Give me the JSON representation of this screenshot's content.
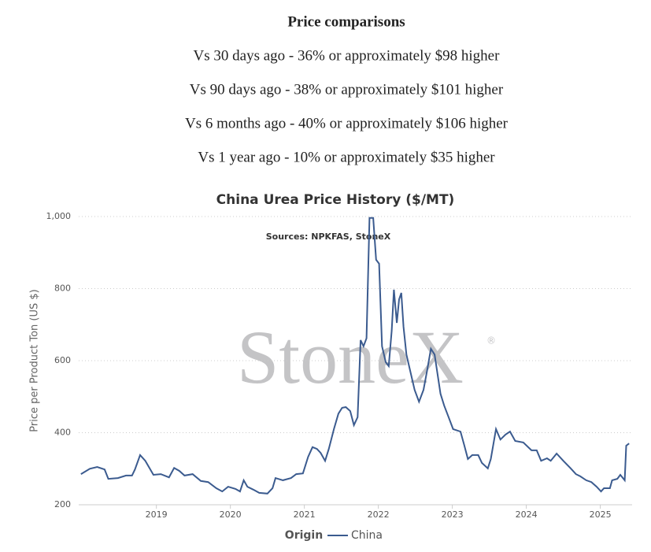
{
  "price_comparisons": {
    "title": "Price comparisons",
    "lines": [
      "Vs 30 days ago - 36% or approximately $98 higher",
      "Vs 90 days ago - 38% or approximately $101 higher",
      "Vs 6 months ago - 40% or approximately $106 higher",
      "Vs 1 year ago - 10% or approximately $35 higher"
    ]
  },
  "chart_data": {
    "type": "line",
    "title": "China Urea Price History ($/MT)",
    "annotation": "Sources: NPKFAS, StoneX",
    "watermark": "StoneX",
    "y_label": "Price per Product Ton (US $)",
    "legend_title": "Origin",
    "grid": true,
    "xlim": [
      2017.95,
      2025.43
    ],
    "xticks": [
      2019,
      2020,
      2021,
      2022,
      2023,
      2024,
      2025
    ],
    "ylim": [
      200,
      1000
    ],
    "yticks": [
      200,
      400,
      600,
      800,
      {
        "value": 1000,
        "label": "1,000"
      }
    ],
    "x": [
      2017.98,
      2018.1,
      2018.2,
      2018.3,
      2018.35,
      2018.48,
      2018.59,
      2018.67,
      2018.71,
      2018.78,
      2018.85,
      2018.96,
      2019.06,
      2019.17,
      2019.24,
      2019.31,
      2019.38,
      2019.49,
      2019.6,
      2019.7,
      2019.81,
      2019.89,
      2019.97,
      2020.07,
      2020.13,
      2020.18,
      2020.23,
      2020.31,
      2020.39,
      2020.5,
      2020.57,
      2020.61,
      2020.71,
      2020.82,
      2020.89,
      2020.98,
      2021.05,
      2021.11,
      2021.17,
      2021.22,
      2021.28,
      2021.33,
      2021.4,
      2021.46,
      2021.51,
      2021.56,
      2021.62,
      2021.67,
      2021.72,
      2021.76,
      2021.8,
      2021.84,
      2021.88,
      2021.93,
      2021.97,
      2022.01,
      2022.05,
      2022.1,
      2022.14,
      2022.18,
      2022.21,
      2022.25,
      2022.28,
      2022.31,
      2022.34,
      2022.38,
      2022.44,
      2022.49,
      2022.55,
      2022.61,
      2022.66,
      2022.71,
      2022.76,
      2022.8,
      2022.84,
      2022.89,
      2022.95,
      2023.01,
      2023.11,
      2023.16,
      2023.21,
      2023.27,
      2023.35,
      2023.4,
      2023.48,
      2023.52,
      2023.59,
      2023.65,
      2023.72,
      2023.78,
      2023.85,
      2023.96,
      2024.07,
      2024.14,
      2024.2,
      2024.28,
      2024.33,
      2024.41,
      2024.5,
      2024.6,
      2024.67,
      2024.73,
      2024.81,
      2024.88,
      2024.95,
      2025.01,
      2025.05,
      2025.13,
      2025.16,
      2025.23,
      2025.27,
      2025.33,
      2025.35,
      2025.39
    ],
    "series": [
      {
        "name": "China",
        "color": "#3b5b8f",
        "values": [
          285,
          300,
          305,
          298,
          272,
          274,
          281,
          281,
          298,
          338,
          322,
          283,
          285,
          276,
          302,
          294,
          281,
          285,
          266,
          263,
          246,
          237,
          250,
          244,
          237,
          268,
          250,
          242,
          233,
          231,
          246,
          274,
          268,
          274,
          285,
          287,
          333,
          360,
          355,
          344,
          322,
          355,
          410,
          453,
          469,
          471,
          460,
          421,
          443,
          657,
          640,
          662,
          996,
          996,
          880,
          869,
          640,
          596,
          585,
          683,
          797,
          705,
          770,
          788,
          694,
          617,
          563,
          519,
          486,
          519,
          574,
          633,
          617,
          563,
          508,
          475,
          443,
          410,
          403,
          366,
          327,
          338,
          338,
          316,
          301,
          327,
          410,
          381,
          395,
          403,
          377,
          373,
          351,
          351,
          322,
          329,
          322,
          342,
          322,
          301,
          285,
          279,
          268,
          263,
          250,
          237,
          246,
          246,
          268,
          272,
          283,
          268,
          364,
          370
        ]
      }
    ]
  }
}
